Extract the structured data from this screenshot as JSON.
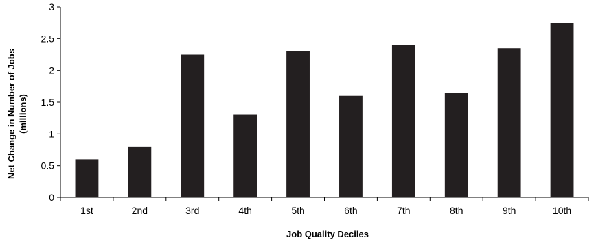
{
  "chart_data": {
    "type": "bar",
    "title": "",
    "xlabel": "Job Quality Deciles",
    "ylabel_line1": "Net Change in Number of Jobs",
    "ylabel_line2": "(millions)",
    "categories": [
      "1st",
      "2nd",
      "3rd",
      "4th",
      "5th",
      "6th",
      "7th",
      "8th",
      "9th",
      "10th"
    ],
    "values": [
      0.6,
      0.8,
      2.25,
      1.3,
      2.3,
      1.6,
      2.4,
      1.65,
      2.35,
      2.75
    ],
    "ylim": [
      0,
      3
    ],
    "yticks": [
      0,
      0.5,
      1,
      1.5,
      2,
      2.5,
      3
    ],
    "ytick_labels": [
      "0",
      "0.5",
      "1",
      "1.5",
      "2",
      "2.5",
      "3"
    ],
    "grid": false,
    "legend": "none",
    "bar_color": "#231f20",
    "axis_color": "#000000"
  }
}
